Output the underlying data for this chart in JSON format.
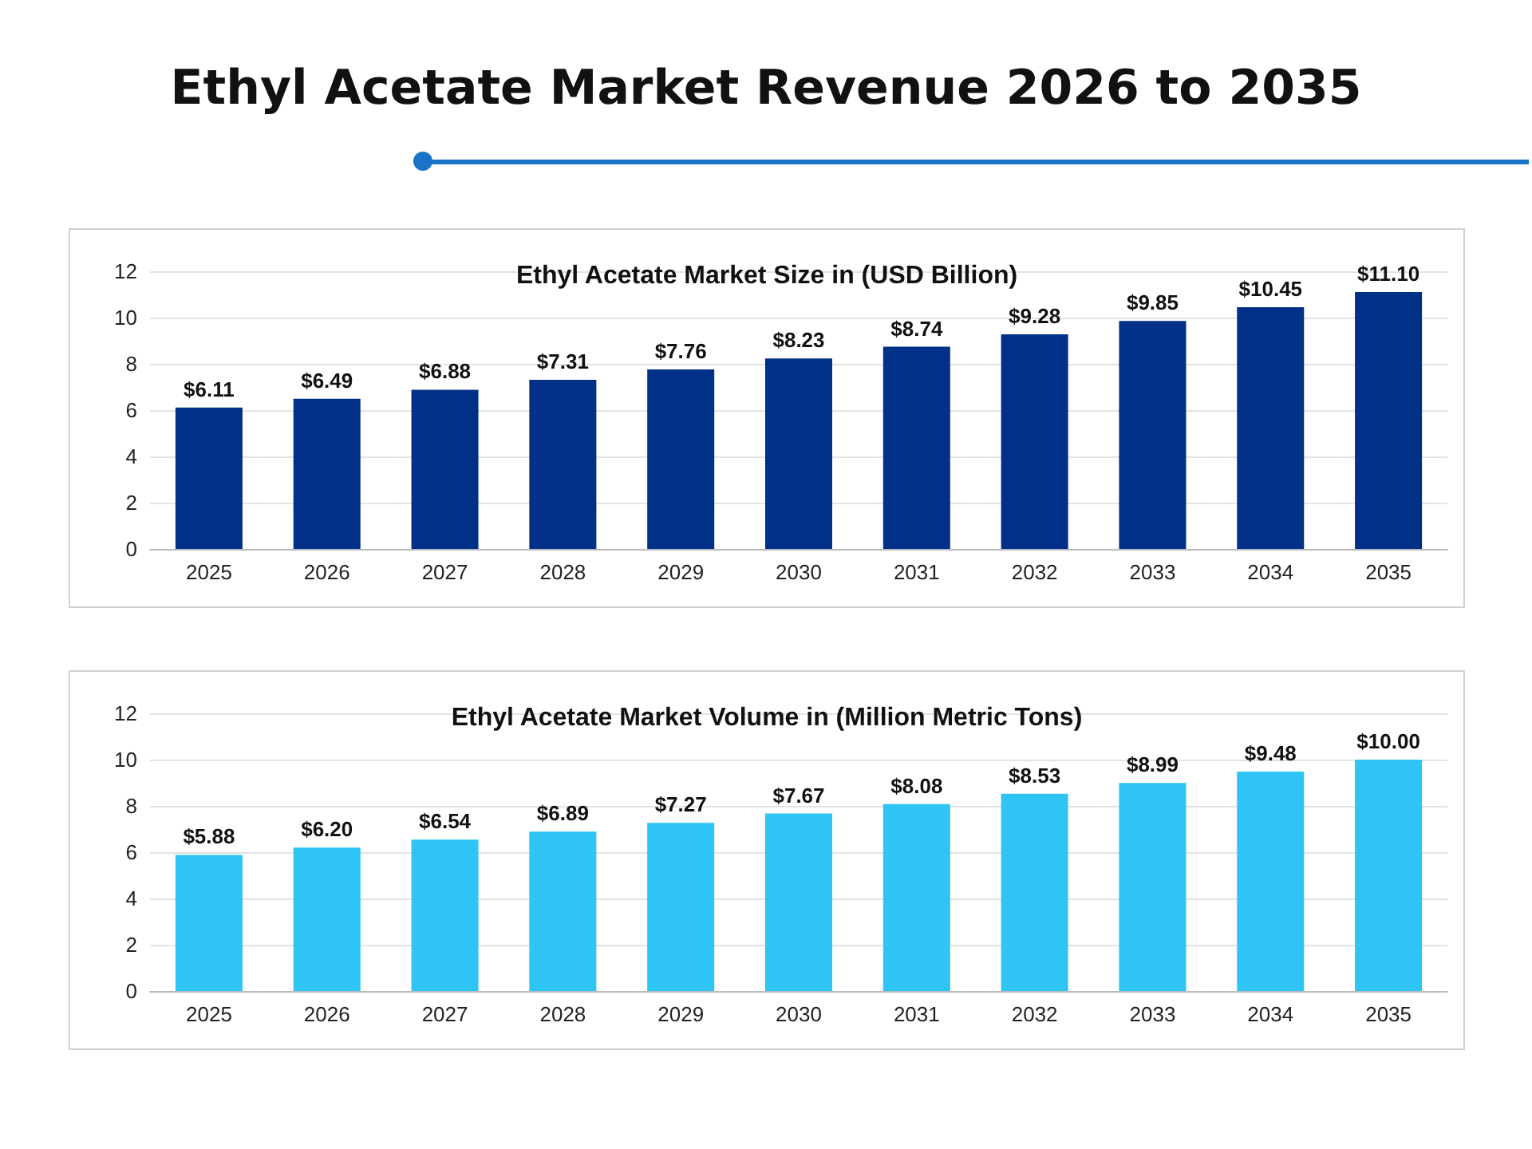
{
  "chart_data": [
    {
      "type": "bar",
      "title": "Ethyl Acetate Market Revenue 2026 to 2035",
      "subtitle": "Ethyl Acetate Market Size in (USD Billion)",
      "categories": [
        "2025",
        "2026",
        "2027",
        "2028",
        "2029",
        "2030",
        "2031",
        "2032",
        "2033",
        "2034",
        "2035"
      ],
      "values": [
        6.11,
        6.49,
        6.88,
        7.31,
        7.76,
        8.23,
        8.74,
        9.28,
        9.85,
        10.45,
        11.1
      ],
      "value_labels": [
        "$6.11",
        "$6.49",
        "$6.88",
        "$7.31",
        "$7.76",
        "$8.23",
        "$8.74",
        "$9.28",
        "$9.85",
        "$10.45",
        "$11.10"
      ],
      "color": "#003087",
      "ylim": [
        0,
        12
      ],
      "yticks": [
        0,
        2,
        4,
        6,
        8,
        10,
        12
      ],
      "grid": "y"
    },
    {
      "type": "bar",
      "title": "Ethyl Acetate Market Volume in (Million Metric Tons)",
      "categories": [
        "2025",
        "2026",
        "2027",
        "2028",
        "2029",
        "2030",
        "2031",
        "2032",
        "2033",
        "2034",
        "2035"
      ],
      "values": [
        5.88,
        6.2,
        6.54,
        6.89,
        7.27,
        7.67,
        8.08,
        8.53,
        8.99,
        9.48,
        10.0
      ],
      "value_labels": [
        "$5.88",
        "$6.20",
        "$6.54",
        "$6.89",
        "$7.27",
        "$7.67",
        "$8.08",
        "$8.53",
        "$8.99",
        "$9.48",
        "$10.00"
      ],
      "color": "#2ec4f6",
      "ylim": [
        0,
        12
      ],
      "yticks": [
        0,
        2,
        4,
        6,
        8,
        10,
        12
      ],
      "grid": "y"
    }
  ]
}
